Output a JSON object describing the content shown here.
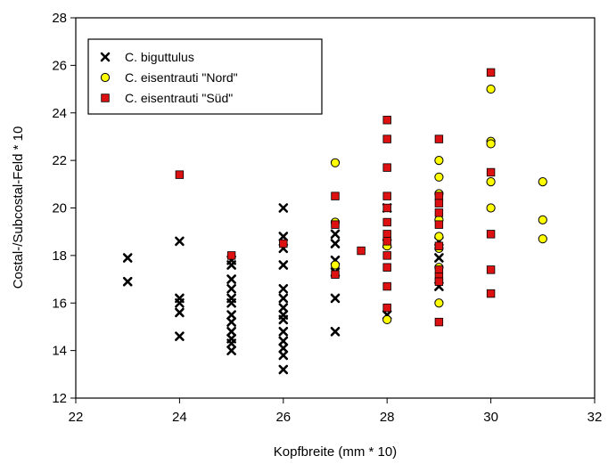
{
  "chart_data": {
    "type": "scatter",
    "xlabel": "Kopfbreite (mm * 10)",
    "ylabel": "Costal-/Subcostal-Feld * 10",
    "xlim": [
      22,
      32
    ],
    "ylim": [
      12,
      28
    ],
    "xticks": [
      22,
      24,
      26,
      28,
      30,
      32
    ],
    "yticks": [
      12,
      14,
      16,
      18,
      20,
      22,
      24,
      26,
      28
    ],
    "grid": false,
    "legend_position": "top-left",
    "series": [
      {
        "name": "C. biguttulus",
        "marker": "x",
        "color": "#000000",
        "points": [
          [
            23,
            17.9
          ],
          [
            23,
            16.9
          ],
          [
            24,
            18.6
          ],
          [
            24,
            16.2
          ],
          [
            24,
            16.0
          ],
          [
            24,
            15.6
          ],
          [
            24,
            14.6
          ],
          [
            25,
            17.8
          ],
          [
            25,
            17.6
          ],
          [
            25,
            17.0
          ],
          [
            25,
            16.6
          ],
          [
            25,
            16.2
          ],
          [
            25,
            16.0
          ],
          [
            25,
            15.5
          ],
          [
            25,
            15.2
          ],
          [
            25,
            14.8
          ],
          [
            25,
            14.5
          ],
          [
            25,
            14.3
          ],
          [
            25,
            14.0
          ],
          [
            26,
            20.0
          ],
          [
            26,
            18.8
          ],
          [
            26,
            18.3
          ],
          [
            26,
            17.6
          ],
          [
            26,
            16.6
          ],
          [
            26,
            16.2
          ],
          [
            26,
            15.8
          ],
          [
            26,
            15.5
          ],
          [
            26,
            15.3
          ],
          [
            26,
            14.8
          ],
          [
            26,
            14.4
          ],
          [
            26,
            14.1
          ],
          [
            26,
            13.8
          ],
          [
            26,
            13.2
          ],
          [
            27,
            18.9
          ],
          [
            27,
            18.5
          ],
          [
            27,
            17.8
          ],
          [
            27,
            17.3
          ],
          [
            27,
            16.2
          ],
          [
            27,
            14.8
          ],
          [
            28,
            20.0
          ],
          [
            28,
            18.5
          ],
          [
            28,
            15.5
          ],
          [
            29,
            18.6
          ],
          [
            29,
            17.9
          ],
          [
            29,
            16.7
          ]
        ]
      },
      {
        "name": "C. eisentrauti \"Nord\"",
        "marker": "circle",
        "color": "#ffff00",
        "points": [
          [
            27,
            21.9
          ],
          [
            27,
            19.4
          ],
          [
            27,
            17.6
          ],
          [
            28,
            15.3
          ],
          [
            28,
            18.4
          ],
          [
            29,
            22.0
          ],
          [
            29,
            21.3
          ],
          [
            29,
            20.6
          ],
          [
            29,
            19.5
          ],
          [
            29,
            18.8
          ],
          [
            29,
            18.3
          ],
          [
            29,
            17.5
          ],
          [
            29,
            16.0
          ],
          [
            30,
            25.0
          ],
          [
            30,
            22.8
          ],
          [
            30,
            22.7
          ],
          [
            30,
            21.1
          ],
          [
            30,
            20.0
          ],
          [
            31,
            21.1
          ],
          [
            31,
            19.5
          ],
          [
            31,
            18.7
          ]
        ]
      },
      {
        "name": "C. eisentrauti \"Süd\"",
        "marker": "square",
        "color": "#dd1111",
        "points": [
          [
            24,
            21.4
          ],
          [
            25,
            18.0
          ],
          [
            26,
            18.5
          ],
          [
            27,
            20.5
          ],
          [
            27,
            19.3
          ],
          [
            27,
            17.2
          ],
          [
            27.5,
            18.2
          ],
          [
            28,
            23.7
          ],
          [
            28,
            22.9
          ],
          [
            28,
            21.7
          ],
          [
            28,
            20.5
          ],
          [
            28,
            20.0
          ],
          [
            28,
            19.4
          ],
          [
            28,
            18.9
          ],
          [
            28,
            18.6
          ],
          [
            28,
            18.0
          ],
          [
            28,
            17.5
          ],
          [
            28,
            16.7
          ],
          [
            28,
            15.8
          ],
          [
            29,
            22.9
          ],
          [
            29,
            20.5
          ],
          [
            29,
            20.2
          ],
          [
            29,
            19.8
          ],
          [
            29,
            19.3
          ],
          [
            29,
            18.4
          ],
          [
            29,
            17.4
          ],
          [
            29,
            17.1
          ],
          [
            29,
            16.9
          ],
          [
            29,
            15.2
          ],
          [
            30,
            25.7
          ],
          [
            30,
            21.5
          ],
          [
            30,
            18.9
          ],
          [
            30,
            17.4
          ],
          [
            30,
            16.4
          ]
        ]
      }
    ]
  }
}
